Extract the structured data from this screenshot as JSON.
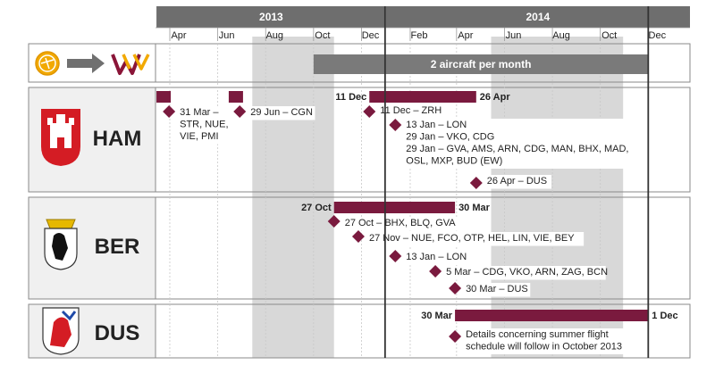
{
  "chart_data": {
    "type": "gantt",
    "years": [
      {
        "label": "2013",
        "start": "2013-03-15"
      },
      {
        "label": "2014",
        "start": "2014-01-01"
      }
    ],
    "months": [
      {
        "label": "Apr",
        "date": "2013-04-01"
      },
      {
        "label": "Jun",
        "date": "2013-06-01"
      },
      {
        "label": "Aug",
        "date": "2013-08-01"
      },
      {
        "label": "Oct",
        "date": "2013-10-01"
      },
      {
        "label": "Dec",
        "date": "2013-12-01"
      },
      {
        "label": "Feb",
        "date": "2014-02-01"
      },
      {
        "label": "Apr",
        "date": "2014-04-01"
      },
      {
        "label": "Jun",
        "date": "2014-06-01"
      },
      {
        "label": "Aug",
        "date": "2014-08-01"
      },
      {
        "label": "Oct",
        "date": "2014-10-01"
      },
      {
        "label": "Dec",
        "date": "2014-12-01"
      }
    ],
    "shaded_periods": [
      {
        "start": "2013-07-15",
        "end": "2013-10-27"
      },
      {
        "start": "2014-05-15",
        "end": "2014-10-30"
      }
    ],
    "milestone_lines": [
      "2013-12-31",
      "2014-12-01"
    ],
    "sections": [
      {
        "id": "top",
        "logos": [
          "lufthansa-logo",
          "arrow-icon",
          "germanwings-logo"
        ],
        "banner": {
          "label": "2 aircraft per month",
          "start": "2013-10-01",
          "end": "2014-12-01"
        }
      },
      {
        "id": "ham",
        "city": "HAM",
        "crest": "hamburg-crest",
        "bars": [
          {
            "start": "2013-03-15",
            "end": "2013-03-31"
          },
          {
            "start": "2013-06-15",
            "end": "2013-06-29"
          },
          {
            "start": "2013-12-11",
            "end": "2014-04-26",
            "start_label": "11 Dec",
            "end_label": "26 Apr"
          }
        ],
        "events": [
          {
            "date": "2013-03-31",
            "lines": [
              "31 Mar –",
              "STR, NUE,",
              "VIE, PMI"
            ]
          },
          {
            "date": "2013-06-29",
            "lines": [
              "29 Jun – CGN"
            ]
          },
          {
            "date": "2013-12-11",
            "lines": [
              "11 Dec – ZRH"
            ]
          },
          {
            "date": "2014-01-13",
            "lines": [
              "13 Jan – LON",
              "29 Jan – VKO, CDG",
              "29 Jan – GVA, AMS, ARN, CDG, MAN, BHX, MAD,",
              "OSL, MXP, BUD (EW)"
            ]
          },
          {
            "date": "2014-04-26",
            "lines": [
              "26 Apr – DUS"
            ]
          }
        ]
      },
      {
        "id": "ber",
        "city": "BER",
        "crest": "berlin-crest",
        "bars": [
          {
            "start": "2013-10-27",
            "end": "2014-03-30",
            "start_label": "27 Oct",
            "end_label": "30 Mar"
          }
        ],
        "events": [
          {
            "date": "2013-10-27",
            "lines": [
              "27 Oct – BHX, BLQ, GVA"
            ]
          },
          {
            "date": "2013-11-27",
            "lines": [
              "27 Nov – NUE, FCO, OTP, HEL, LIN, VIE, BEY"
            ]
          },
          {
            "date": "2014-01-13",
            "lines": [
              "13 Jan – LON"
            ]
          },
          {
            "date": "2014-03-05",
            "lines": [
              "5 Mar – CDG, VKO, ARN, ZAG, BCN"
            ]
          },
          {
            "date": "2014-03-30",
            "lines": [
              "30 Mar – DUS"
            ]
          }
        ]
      },
      {
        "id": "dus",
        "city": "DUS",
        "crest": "duesseldorf-crest",
        "bars": [
          {
            "start": "2014-03-30",
            "end": "2014-12-01",
            "start_label": "30 Mar",
            "end_label": "1 Dec"
          }
        ],
        "events": [
          {
            "date": "2014-03-30",
            "lines": [
              "Details concerning summer flight",
              "schedule will follow in October 2013"
            ]
          }
        ]
      }
    ],
    "colors": {
      "bar": "#7a1a3e",
      "header": "#6e6e6e",
      "shade": "#d8d8d8",
      "gridline": "#c8c8c8",
      "frame": "#8a8a8a",
      "crest_bg": "#f0f0f0",
      "banner": "#7a7a7a"
    }
  }
}
